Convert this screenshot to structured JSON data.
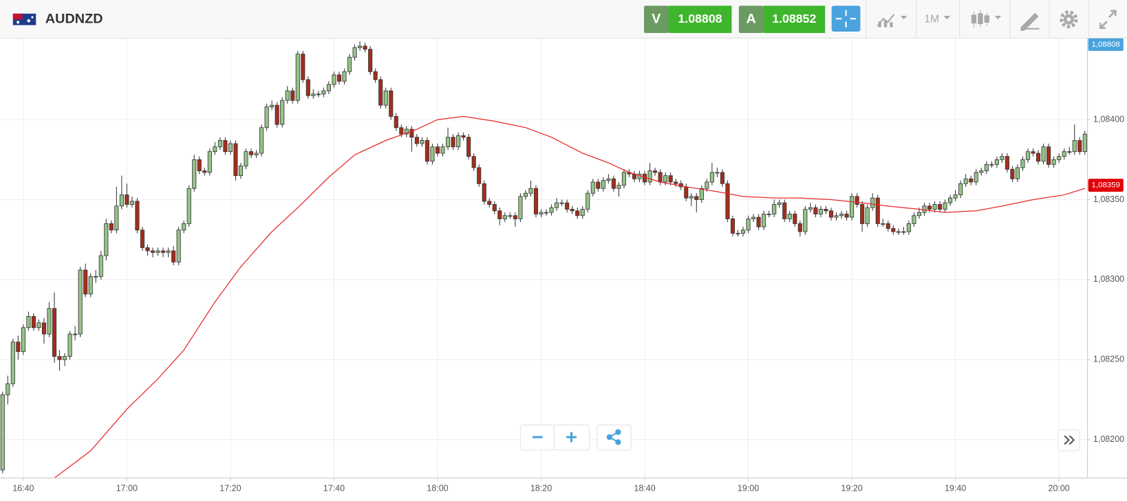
{
  "header": {
    "symbol": "AUDNZD",
    "sell_label": "V",
    "sell_price": "1.08808",
    "buy_label": "A",
    "buy_price": "1.08852",
    "interval": "1M"
  },
  "chart_data": {
    "type": "candlestick",
    "x": [
      "16:36",
      "16:37",
      "16:38",
      "16:39",
      "16:40",
      "16:41",
      "16:42",
      "16:43",
      "16:44",
      "16:45",
      "16:46",
      "16:47",
      "16:48",
      "16:49",
      "16:50",
      "16:51",
      "16:52",
      "16:53",
      "16:54",
      "16:55",
      "16:56",
      "16:57",
      "16:58",
      "16:59",
      "17:00",
      "17:01",
      "17:02",
      "17:03",
      "17:04",
      "17:05",
      "17:06",
      "17:07",
      "17:08",
      "17:09",
      "17:10",
      "17:11",
      "17:12",
      "17:13",
      "17:14",
      "17:15",
      "17:16",
      "17:17",
      "17:18",
      "17:19",
      "17:20",
      "17:21",
      "17:22",
      "17:23",
      "17:24",
      "17:25",
      "17:26",
      "17:27",
      "17:28",
      "17:29",
      "17:30",
      "17:31",
      "17:32",
      "17:33",
      "17:34",
      "17:35",
      "17:36",
      "17:37",
      "17:38",
      "17:39",
      "17:40",
      "17:41",
      "17:42",
      "17:43",
      "17:44",
      "17:45",
      "17:46",
      "17:47",
      "17:48",
      "17:49",
      "17:50",
      "17:51",
      "17:52",
      "17:53",
      "17:54",
      "17:55",
      "17:56",
      "17:57",
      "17:58",
      "17:59",
      "18:00",
      "18:01",
      "18:02",
      "18:03",
      "18:04",
      "18:05",
      "18:06",
      "18:07",
      "18:08",
      "18:09",
      "18:10",
      "18:11",
      "18:12",
      "18:13",
      "18:14",
      "18:15",
      "18:16",
      "18:17",
      "18:18",
      "18:19",
      "18:20",
      "18:21",
      "18:22",
      "18:23",
      "18:24",
      "18:25",
      "18:26",
      "18:27",
      "18:28",
      "18:29",
      "18:30",
      "18:31",
      "18:32",
      "18:33",
      "18:34",
      "18:35",
      "18:36",
      "18:37",
      "18:38",
      "18:39",
      "18:40",
      "18:41",
      "18:42",
      "18:43",
      "18:44",
      "18:45",
      "18:46",
      "18:47",
      "18:48",
      "18:49",
      "18:50",
      "18:51",
      "18:52",
      "18:53",
      "18:54",
      "18:55",
      "18:56",
      "18:57",
      "18:58",
      "18:59",
      "19:00",
      "19:01",
      "19:02",
      "19:03",
      "19:04",
      "19:05",
      "19:06",
      "19:07",
      "19:08",
      "19:09",
      "19:10",
      "19:11",
      "19:12",
      "19:13",
      "19:14",
      "19:15",
      "19:16",
      "19:17",
      "19:18",
      "19:19",
      "19:20",
      "19:21",
      "19:22",
      "19:23",
      "19:24",
      "19:25",
      "19:26",
      "19:27",
      "19:28",
      "19:29",
      "19:30",
      "19:31",
      "19:32",
      "19:33",
      "19:34",
      "19:35",
      "19:36",
      "19:37",
      "19:38",
      "19:39",
      "19:40",
      "19:41",
      "19:42",
      "19:43",
      "19:44",
      "19:45",
      "19:46",
      "19:47",
      "19:48",
      "19:49",
      "19:50",
      "19:51",
      "19:52",
      "19:53",
      "19:54",
      "19:55",
      "19:56",
      "19:57",
      "19:58",
      "19:59",
      "20:00",
      "20:01",
      "20:02",
      "20:03",
      "20:04",
      "20:05"
    ],
    "open": [
      1.08181,
      1.08228,
      1.08235,
      1.08261,
      1.08255,
      1.0827,
      1.08277,
      1.0827,
      1.08273,
      1.08266,
      1.08282,
      1.08252,
      1.0825,
      1.08252,
      1.08266,
      1.08266,
      1.08306,
      1.08291,
      1.08302,
      1.08302,
      1.08315,
      1.08335,
      1.08331,
      1.08346,
      1.08353,
      1.08347,
      1.08349,
      1.08331,
      1.0832,
      1.08318,
      1.08317,
      1.08318,
      1.08317,
      1.08318,
      1.08311,
      1.08331,
      1.08335,
      1.08357,
      1.08375,
      1.08368,
      1.08367,
      1.0838,
      1.08383,
      1.08387,
      1.0838,
      1.08385,
      1.08365,
      1.08371,
      1.0838,
      1.08378,
      1.08379,
      1.08395,
      1.08408,
      1.08409,
      1.08397,
      1.08412,
      1.08418,
      1.08412,
      1.08441,
      1.08425,
      1.08415,
      1.08416,
      1.08416,
      1.08418,
      1.08422,
      1.08428,
      1.08424,
      1.0843,
      1.08439,
      1.08445,
      1.08446,
      1.08444,
      1.0843,
      1.08425,
      1.08409,
      1.08418,
      1.08402,
      1.08395,
      1.08391,
      1.08394,
      1.08389,
      1.08385,
      1.08387,
      1.08374,
      1.08383,
      1.08379,
      1.08383,
      1.08389,
      1.08383,
      1.0839,
      1.08389,
      1.08377,
      1.0837,
      1.0836,
      1.08349,
      1.08347,
      1.08343,
      1.08338,
      1.0834,
      1.0834,
      1.08338,
      1.08352,
      1.08354,
      1.08357,
      1.08341,
      1.08342,
      1.08342,
      1.08345,
      1.08348,
      1.08348,
      1.08344,
      1.08343,
      1.0834,
      1.08344,
      1.08354,
      1.08361,
      1.08357,
      1.08362,
      1.08363,
      1.08357,
      1.08359,
      1.08367,
      1.08366,
      1.08363,
      1.08366,
      1.08361,
      1.08368,
      1.08367,
      1.08361,
      1.08365,
      1.08361,
      1.0836,
      1.08358,
      1.08351,
      1.08352,
      1.0835,
      1.08357,
      1.08361,
      1.08367,
      1.08367,
      1.0836,
      1.08338,
      1.08329,
      1.08329,
      1.08331,
      1.08338,
      1.08339,
      1.08333,
      1.08341,
      1.08341,
      1.08347,
      1.08348,
      1.08338,
      1.08341,
      1.08335,
      1.0833,
      1.08344,
      1.08345,
      1.08341,
      1.08344,
      1.08343,
      1.08339,
      1.0834,
      1.08341,
      1.08339,
      1.08352,
      1.08347,
      1.08335,
      1.08345,
      1.08351,
      1.08335,
      1.08335,
      1.08332,
      1.0833,
      1.0833,
      1.0833,
      1.08335,
      1.0834,
      1.08342,
      1.08346,
      1.08344,
      1.08347,
      1.08344,
      1.08348,
      1.08351,
      1.08353,
      1.0836,
      1.08363,
      1.08361,
      1.08367,
      1.08368,
      1.08372,
      1.08372,
      1.08375,
      1.08377,
      1.08369,
      1.08363,
      1.0837,
      1.08375,
      1.0838,
      1.08379,
      1.08374,
      1.08383,
      1.08372,
      1.08375,
      1.08377,
      1.0838,
      1.0838,
      1.08387,
      1.0838
    ],
    "high": [
      1.0823,
      1.0824,
      1.08263,
      1.08265,
      1.08272,
      1.0828,
      1.08279,
      1.08275,
      1.08276,
      1.08286,
      1.08292,
      1.08256,
      1.08254,
      1.08268,
      1.08271,
      1.08308,
      1.0831,
      1.08304,
      1.08306,
      1.08318,
      1.08338,
      1.08337,
      1.08358,
      1.08365,
      1.0836,
      1.08352,
      1.08351,
      1.08333,
      1.08322,
      1.0832,
      1.0832,
      1.0832,
      1.0832,
      1.08321,
      1.08333,
      1.08337,
      1.08359,
      1.08378,
      1.08377,
      1.0837,
      1.08382,
      1.08386,
      1.08389,
      1.08389,
      1.08387,
      1.08387,
      1.08373,
      1.08382,
      1.08382,
      1.08381,
      1.08397,
      1.0841,
      1.08412,
      1.08411,
      1.08414,
      1.08421,
      1.0842,
      1.08443,
      1.08443,
      1.08427,
      1.08419,
      1.08418,
      1.0842,
      1.08424,
      1.0843,
      1.0843,
      1.08432,
      1.08441,
      1.08447,
      1.08449,
      1.08448,
      1.08446,
      1.08432,
      1.08427,
      1.0842,
      1.0842,
      1.08404,
      1.08397,
      1.08396,
      1.08396,
      1.08391,
      1.08389,
      1.08389,
      1.08385,
      1.08385,
      1.08385,
      1.08395,
      1.08391,
      1.08392,
      1.08392,
      1.08391,
      1.08379,
      1.08372,
      1.08362,
      1.08351,
      1.08349,
      1.08345,
      1.08342,
      1.08342,
      1.08342,
      1.08354,
      1.08356,
      1.08362,
      1.08359,
      1.08344,
      1.08344,
      1.08347,
      1.08351,
      1.0835,
      1.0835,
      1.08346,
      1.08345,
      1.08346,
      1.08356,
      1.08363,
      1.08363,
      1.08364,
      1.08366,
      1.08365,
      1.08361,
      1.08369,
      1.08369,
      1.08368,
      1.08368,
      1.08368,
      1.08373,
      1.0837,
      1.08369,
      1.08367,
      1.08367,
      1.08363,
      1.08362,
      1.0836,
      1.08354,
      1.08354,
      1.08359,
      1.08363,
      1.08373,
      1.0837,
      1.08369,
      1.08362,
      1.0834,
      1.08331,
      1.08333,
      1.0834,
      1.08341,
      1.08341,
      1.08343,
      1.08343,
      1.0835,
      1.0835,
      1.0835,
      1.08343,
      1.08343,
      1.08337,
      1.08346,
      1.08348,
      1.08347,
      1.08346,
      1.08346,
      1.08345,
      1.08342,
      1.08343,
      1.08343,
      1.08354,
      1.08354,
      1.08349,
      1.08347,
      1.08354,
      1.08353,
      1.08338,
      1.08337,
      1.08334,
      1.08332,
      1.08333,
      1.08337,
      1.08342,
      1.08345,
      1.08348,
      1.08348,
      1.08349,
      1.08349,
      1.0835,
      1.08353,
      1.08356,
      1.08362,
      1.08366,
      1.08365,
      1.08369,
      1.0837,
      1.08374,
      1.08374,
      1.08377,
      1.08379,
      1.08379,
      1.08371,
      1.08372,
      1.08377,
      1.08382,
      1.08382,
      1.08381,
      1.08385,
      1.08385,
      1.08377,
      1.08379,
      1.08382,
      1.08383,
      1.08397,
      1.08389,
      1.08393
    ],
    "low": [
      1.08179,
      1.08222,
      1.08233,
      1.0825,
      1.08253,
      1.08268,
      1.08268,
      1.08268,
      1.0826,
      1.08264,
      1.08248,
      1.08243,
      1.08246,
      1.0825,
      1.08262,
      1.08264,
      1.08289,
      1.08289,
      1.08298,
      1.083,
      1.08312,
      1.08329,
      1.08329,
      1.08344,
      1.08345,
      1.08345,
      1.08329,
      1.08318,
      1.08315,
      1.08314,
      1.08315,
      1.08314,
      1.08314,
      1.08309,
      1.08309,
      1.08329,
      1.08333,
      1.08355,
      1.08366,
      1.08365,
      1.08365,
      1.08378,
      1.08381,
      1.08378,
      1.08378,
      1.08362,
      1.08363,
      1.08369,
      1.08376,
      1.08376,
      1.08377,
      1.08393,
      1.08406,
      1.08395,
      1.08395,
      1.0841,
      1.0841,
      1.0841,
      1.08423,
      1.08413,
      1.08413,
      1.08414,
      1.08414,
      1.08416,
      1.0842,
      1.08422,
      1.08422,
      1.08428,
      1.08437,
      1.08443,
      1.08442,
      1.08428,
      1.08423,
      1.08407,
      1.08407,
      1.084,
      1.08393,
      1.08389,
      1.08389,
      1.0838,
      1.08383,
      1.08383,
      1.08372,
      1.08372,
      1.08377,
      1.08377,
      1.08381,
      1.08381,
      1.08381,
      1.08387,
      1.08375,
      1.08368,
      1.08358,
      1.08347,
      1.08345,
      1.08341,
      1.08334,
      1.08336,
      1.08338,
      1.08333,
      1.08336,
      1.0835,
      1.08352,
      1.08339,
      1.08339,
      1.0834,
      1.0834,
      1.08343,
      1.08346,
      1.08342,
      1.08341,
      1.08338,
      1.08338,
      1.08342,
      1.08352,
      1.08355,
      1.08355,
      1.0836,
      1.08355,
      1.08352,
      1.08357,
      1.08364,
      1.08361,
      1.08361,
      1.08359,
      1.08359,
      1.08365,
      1.08359,
      1.08359,
      1.08359,
      1.08358,
      1.08356,
      1.08349,
      1.08346,
      1.08342,
      1.08348,
      1.08355,
      1.08359,
      1.08364,
      1.08358,
      1.08336,
      1.08327,
      1.08327,
      1.08327,
      1.08329,
      1.08336,
      1.08331,
      1.08331,
      1.08339,
      1.08339,
      1.08345,
      1.08336,
      1.08336,
      1.08333,
      1.08327,
      1.08328,
      1.08342,
      1.08339,
      1.08339,
      1.08341,
      1.08337,
      1.08337,
      1.08338,
      1.08337,
      1.08337,
      1.08345,
      1.0833,
      1.08333,
      1.08343,
      1.08333,
      1.08333,
      1.0833,
      1.08328,
      1.08328,
      1.08328,
      1.08328,
      1.08333,
      1.08338,
      1.0834,
      1.08342,
      1.08342,
      1.08342,
      1.08342,
      1.08346,
      1.08349,
      1.08351,
      1.08358,
      1.08359,
      1.08359,
      1.08365,
      1.08366,
      1.0837,
      1.0837,
      1.08373,
      1.08367,
      1.08361,
      1.08361,
      1.08368,
      1.08373,
      1.08377,
      1.08372,
      1.08372,
      1.0837,
      1.0837,
      1.08373,
      1.08375,
      1.08378,
      1.08378,
      1.08378,
      1.08378
    ],
    "close": [
      1.08228,
      1.08235,
      1.08261,
      1.08255,
      1.0827,
      1.08277,
      1.0827,
      1.08273,
      1.08266,
      1.08282,
      1.08252,
      1.0825,
      1.08252,
      1.08266,
      1.08266,
      1.08306,
      1.08291,
      1.08302,
      1.08302,
      1.08315,
      1.08335,
      1.08331,
      1.08346,
      1.08353,
      1.08347,
      1.08349,
      1.08331,
      1.0832,
      1.08318,
      1.08317,
      1.08318,
      1.08317,
      1.08318,
      1.08311,
      1.08331,
      1.08335,
      1.08357,
      1.08375,
      1.08368,
      1.08367,
      1.0838,
      1.08383,
      1.08387,
      1.0838,
      1.08385,
      1.08365,
      1.08371,
      1.0838,
      1.08378,
      1.08379,
      1.08395,
      1.08408,
      1.08409,
      1.08397,
      1.08412,
      1.08418,
      1.08412,
      1.08441,
      1.08425,
      1.08415,
      1.08416,
      1.08416,
      1.08418,
      1.08422,
      1.08428,
      1.08424,
      1.0843,
      1.08439,
      1.08445,
      1.08446,
      1.08444,
      1.0843,
      1.08425,
      1.08409,
      1.08418,
      1.08402,
      1.08395,
      1.08391,
      1.08394,
      1.08389,
      1.08385,
      1.08387,
      1.08374,
      1.08383,
      1.08379,
      1.08383,
      1.08389,
      1.08383,
      1.0839,
      1.08389,
      1.08377,
      1.0837,
      1.0836,
      1.08349,
      1.08347,
      1.08343,
      1.08338,
      1.0834,
      1.0834,
      1.08338,
      1.08352,
      1.08354,
      1.08357,
      1.08341,
      1.08342,
      1.08342,
      1.08345,
      1.08348,
      1.08348,
      1.08344,
      1.08343,
      1.0834,
      1.08344,
      1.08354,
      1.08361,
      1.08357,
      1.08362,
      1.08363,
      1.08357,
      1.08359,
      1.08367,
      1.08366,
      1.08363,
      1.08366,
      1.08361,
      1.08368,
      1.08367,
      1.08361,
      1.08365,
      1.08361,
      1.0836,
      1.08358,
      1.08351,
      1.08352,
      1.0835,
      1.08357,
      1.08361,
      1.08367,
      1.08367,
      1.0836,
      1.08338,
      1.08329,
      1.08329,
      1.08331,
      1.08338,
      1.08339,
      1.08333,
      1.08341,
      1.08341,
      1.08347,
      1.08348,
      1.08338,
      1.08341,
      1.08335,
      1.0833,
      1.08344,
      1.08345,
      1.08341,
      1.08344,
      1.08343,
      1.08339,
      1.0834,
      1.08341,
      1.08339,
      1.08352,
      1.08347,
      1.08335,
      1.08345,
      1.08351,
      1.08335,
      1.08335,
      1.08332,
      1.0833,
      1.0833,
      1.0833,
      1.08335,
      1.0834,
      1.08342,
      1.08346,
      1.08344,
      1.08347,
      1.08344,
      1.08348,
      1.08351,
      1.08353,
      1.0836,
      1.08363,
      1.08361,
      1.08367,
      1.08368,
      1.08372,
      1.08372,
      1.08375,
      1.08377,
      1.08369,
      1.08363,
      1.0837,
      1.08375,
      1.0838,
      1.08379,
      1.08374,
      1.08383,
      1.08372,
      1.08375,
      1.08377,
      1.0838,
      1.0838,
      1.08387,
      1.0838,
      1.08391
    ],
    "up_color": "#95c487",
    "down_color": "#a42e1c",
    "ma": {
      "color": "#e8262a",
      "x": [
        "16:46",
        "16:53",
        "17:00",
        "17:06",
        "17:11",
        "17:17",
        "17:22",
        "17:28",
        "17:33",
        "17:39",
        "17:44",
        "17:50",
        "17:56",
        "18:00",
        "18:05",
        "18:11",
        "18:17",
        "18:22",
        "18:28",
        "18:33",
        "18:37",
        "18:43",
        "18:48",
        "18:54",
        "18:59",
        "19:05",
        "19:10",
        "19:16",
        "19:22",
        "19:27",
        "19:33",
        "19:38",
        "19:44",
        "19:49",
        "19:55",
        "20:01",
        "20:05"
      ],
      "values": [
        1.08176,
        1.08193,
        1.08219,
        1.08238,
        1.08256,
        1.08286,
        1.08308,
        1.0833,
        1.08345,
        1.08364,
        1.08378,
        1.08387,
        1.08394,
        1.084,
        1.08402,
        1.08399,
        1.08395,
        1.08389,
        1.08379,
        1.08373,
        1.08367,
        1.08361,
        1.08358,
        1.08355,
        1.08352,
        1.08351,
        1.08351,
        1.0835,
        1.08348,
        1.08346,
        1.08344,
        1.08342,
        1.08343,
        1.08346,
        1.0835,
        1.08353,
        1.08357
      ]
    },
    "ylim": [
      1.08176,
      1.08451
    ],
    "yticks": [
      {
        "value": 1.082,
        "label": "1,08200"
      },
      {
        "value": 1.0825,
        "label": "1,08250"
      },
      {
        "value": 1.083,
        "label": "1,08300"
      },
      {
        "value": 1.0835,
        "label": "1,08350"
      },
      {
        "value": 1.084,
        "label": "1,08400"
      }
    ],
    "xticks": [
      "16:40",
      "17:00",
      "17:20",
      "17:40",
      "18:00",
      "18:20",
      "18:40",
      "19:00",
      "19:20",
      "19:40",
      "20:00"
    ],
    "grid": true,
    "bid_badge": {
      "value": 1.08808,
      "label": "1,08808",
      "color": "#4aa3df"
    },
    "price_badge": {
      "value": 1.08359,
      "label": "1,08359",
      "color": "#e0000a"
    }
  }
}
